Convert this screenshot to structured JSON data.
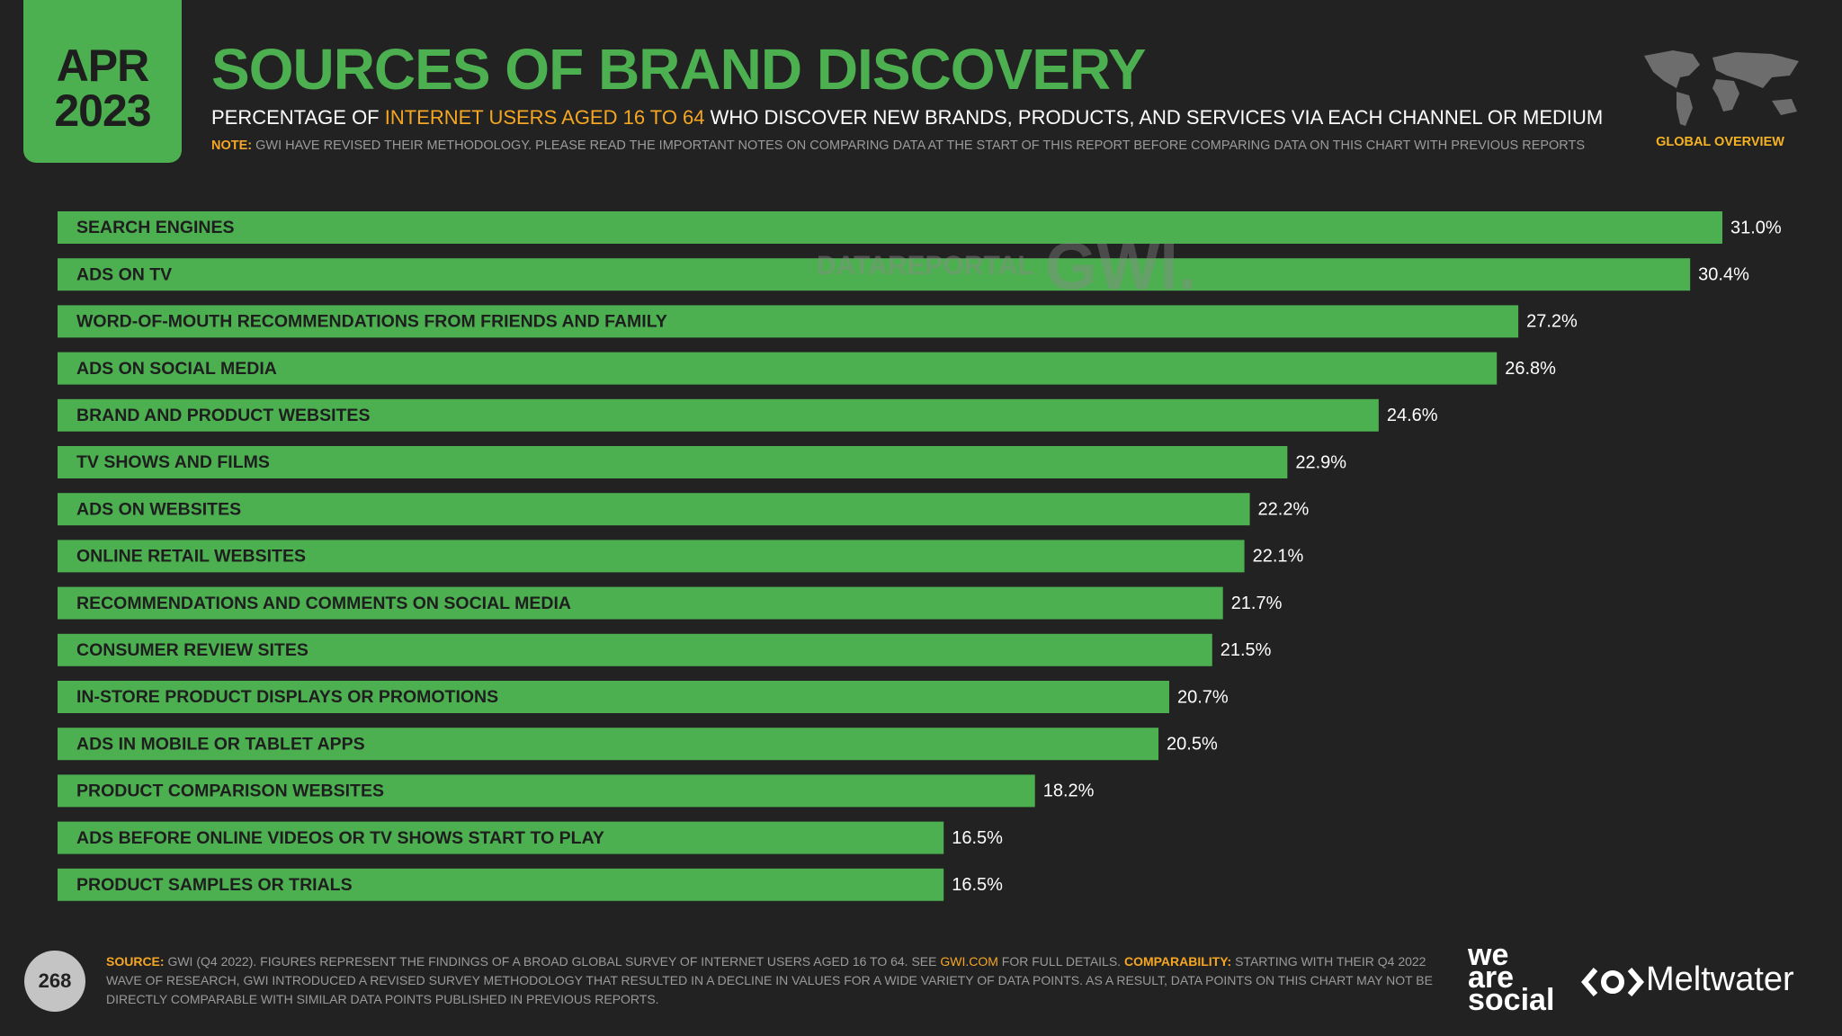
{
  "header": {
    "month": "APR",
    "year": "2023",
    "title": "SOURCES OF BRAND DISCOVERY",
    "subtitle": [
      "PERCENTAGE OF ",
      "INTERNET USERS AGED 16 TO 64",
      " WHO DISCOVER NEW BRANDS, PRODUCTS, AND SERVICES VIA EACH CHANNEL OR MEDIUM"
    ],
    "note_label": "NOTE:",
    "note": " GWI HAVE REVISED THEIR METHODOLOGY. PLEASE READ THE IMPORTANT NOTES ON COMPARING DATA AT THE START OF THIS REPORT BEFORE COMPARING DATA ON THIS CHART WITH PREVIOUS REPORTS",
    "badge": "GLOBAL OVERVIEW"
  },
  "watermark": [
    "DATAREPORTAL",
    "GWI."
  ],
  "chart_data": {
    "type": "bar",
    "orientation": "horizontal",
    "color": "#4caf50",
    "categories": [
      "SEARCH ENGINES",
      "ADS ON TV",
      "WORD-OF-MOUTH RECOMMENDATIONS FROM FRIENDS AND FAMILY",
      "ADS ON SOCIAL MEDIA",
      "BRAND AND PRODUCT WEBSITES",
      "TV SHOWS AND FILMS",
      "ADS ON WEBSITES",
      "ONLINE RETAIL WEBSITES",
      "RECOMMENDATIONS AND COMMENTS ON SOCIAL MEDIA",
      "CONSUMER REVIEW SITES",
      "IN-STORE PRODUCT DISPLAYS OR PROMOTIONS",
      "ADS IN MOBILE OR TABLET APPS",
      "PRODUCT COMPARISON WEBSITES",
      "ADS BEFORE ONLINE VIDEOS OR TV SHOWS START TO PLAY",
      "PRODUCT SAMPLES OR TRIALS"
    ],
    "values": [
      31.0,
      30.4,
      27.2,
      26.8,
      24.6,
      22.9,
      22.2,
      22.1,
      21.7,
      21.5,
      20.7,
      20.5,
      18.2,
      16.5,
      16.5
    ],
    "value_labels": [
      "31.0%",
      "30.4%",
      "27.2%",
      "26.8%",
      "24.6%",
      "22.9%",
      "22.2%",
      "22.1%",
      "21.7%",
      "21.5%",
      "20.7%",
      "20.5%",
      "18.2%",
      "16.5%",
      "16.5%"
    ]
  },
  "footer": {
    "page": "268",
    "source": [
      "SOURCE:",
      " GWI (Q4 2022). FIGURES REPRESENT THE FINDINGS OF A BROAD GLOBAL SURVEY OF INTERNET USERS AGED 16 TO 64. SEE ",
      "GWI.COM",
      " FOR FULL DETAILS. ",
      "COMPARABILITY:",
      " STARTING WITH THEIR Q4 2022 WAVE OF RESEARCH, GWI INTRODUCED A REVISED SURVEY METHODOLOGY THAT RESULTED IN A DECLINE IN VALUES FOR A WIDE VARIETY OF DATA POINTS. AS A RESULT, DATA POINTS ON THIS CHART MAY NOT BE DIRECTLY COMPARABLE WITH SIMILAR DATA POINTS PUBLISHED IN PREVIOUS REPORTS."
    ],
    "logo_we": [
      "we",
      "are",
      "social"
    ],
    "logo_meltwater": "Meltwater"
  }
}
